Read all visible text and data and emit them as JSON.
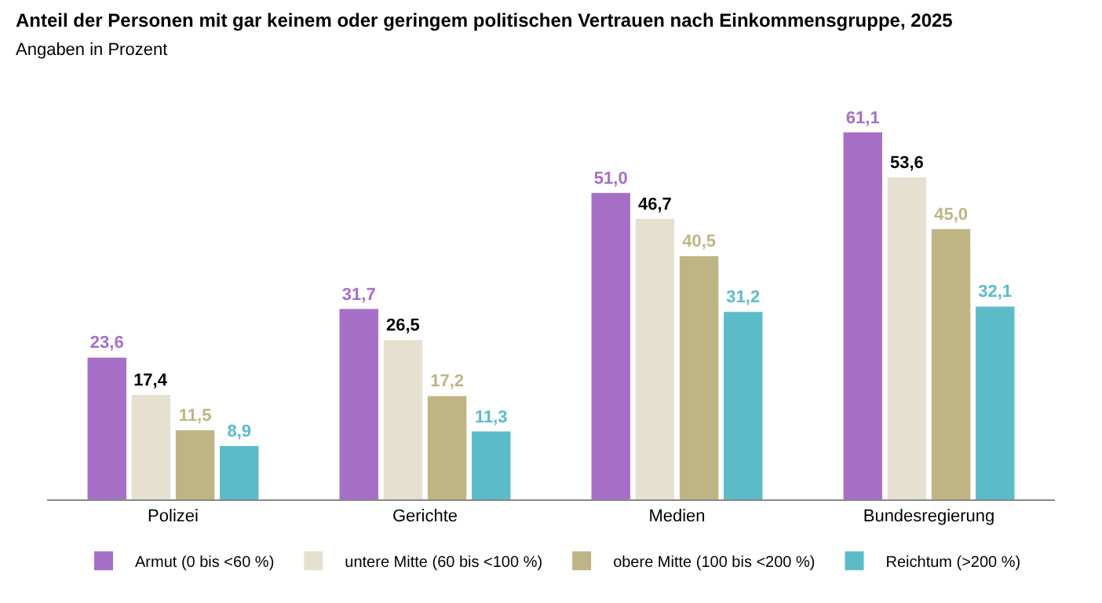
{
  "chart_data": {
    "type": "bar",
    "title": "Anteil der Personen mit gar keinem oder geringem politischen Vertrauen nach Einkommensgruppe, 2025",
    "subtitle": "Angaben in Prozent",
    "categories": [
      "Polizei",
      "Gerichte",
      "Medien",
      "Bundesregierung"
    ],
    "series": [
      {
        "name": "Armut (0 bis <60 %)",
        "color": "#a66fc6",
        "values": [
          23.6,
          31.7,
          51.0,
          61.1
        ],
        "value_labels": [
          "23,6",
          "31,7",
          "51,0",
          "61,1"
        ]
      },
      {
        "name": "untere Mitte (60 bis <100 %)",
        "color": "#e5e0d0",
        "values": [
          17.4,
          26.5,
          46.7,
          53.6
        ],
        "value_labels": [
          "17,4",
          "26,5",
          "46,7",
          "53,6"
        ]
      },
      {
        "name": "obere Mitte (100 bis <200 %)",
        "color": "#bfb584",
        "values": [
          11.5,
          17.2,
          40.5,
          45.0
        ],
        "value_labels": [
          "11,5",
          "17,2",
          "40,5",
          "45,0"
        ]
      },
      {
        "name": "Reichtum (>200 %)",
        "color": "#5bbcc8",
        "values": [
          8.9,
          11.3,
          31.2,
          32.1
        ],
        "value_labels": [
          "8,9",
          "11,3",
          "31,2",
          "32,1"
        ]
      }
    ],
    "legend": "bottom"
  }
}
